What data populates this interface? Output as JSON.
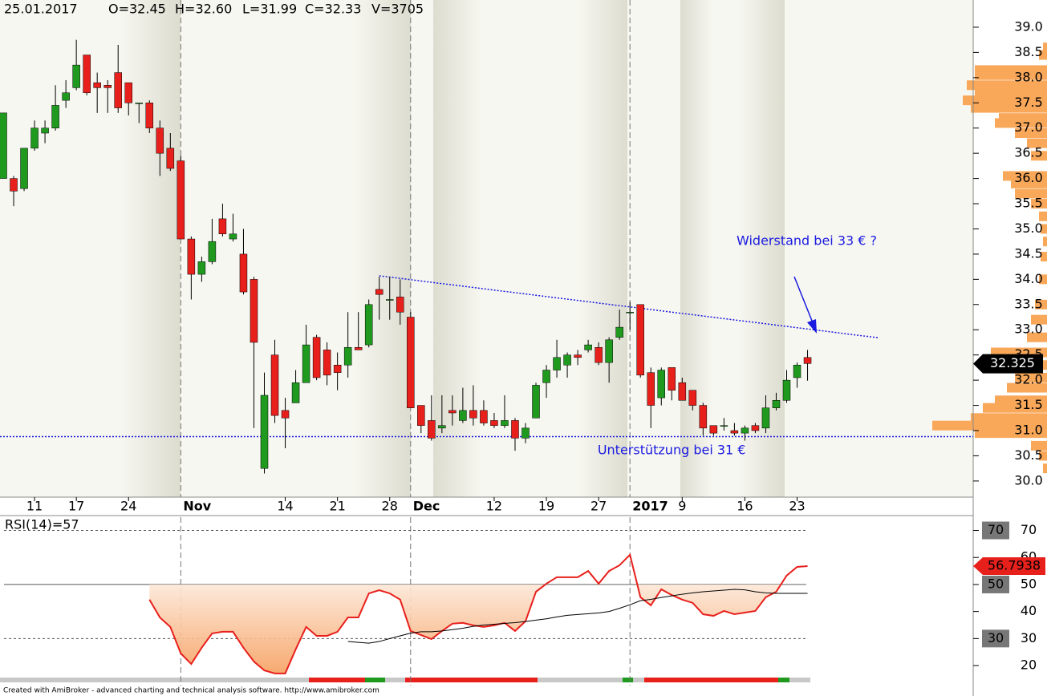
{
  "chart_data": [
    {
      "type": "candlestick",
      "header": [
        "25.01.2017",
        "O=32.45",
        "H=32.60",
        "L=31.99",
        "C=32.33",
        "V=3705"
      ],
      "ylim": [
        29.68,
        39.54
      ],
      "yticks": [
        {
          "value": 30,
          "label": "30.0"
        },
        {
          "value": 30.5,
          "label": "30.5"
        },
        {
          "value": 31,
          "label": "31.0"
        },
        {
          "value": 31.5,
          "label": "31.5"
        },
        {
          "value": 32,
          "label": "32.0"
        },
        {
          "value": 32.5,
          "label": "32.5"
        },
        {
          "value": 33,
          "label": "33.0"
        },
        {
          "value": 33.5,
          "label": "33.5"
        },
        {
          "value": 34,
          "label": "34.0"
        },
        {
          "value": 34.5,
          "label": "34.5"
        },
        {
          "value": 35,
          "label": "35.0"
        },
        {
          "value": 35.5,
          "label": "35.5"
        },
        {
          "value": 36,
          "label": "36.0"
        },
        {
          "value": 36.5,
          "label": "36.5"
        },
        {
          "value": 37,
          "label": "37.0"
        },
        {
          "value": 37.5,
          "label": "37.5"
        },
        {
          "value": 38,
          "label": "38.0"
        },
        {
          "value": 38.5,
          "label": "38.5"
        },
        {
          "value": 39,
          "label": "39.0"
        }
      ],
      "xticks": [
        {
          "value": 3,
          "label": "11"
        },
        {
          "value": 7,
          "label": "17"
        },
        {
          "value": 12,
          "label": "24"
        },
        {
          "value": 27,
          "label": "14"
        },
        {
          "value": 32,
          "label": "21"
        },
        {
          "value": 37,
          "label": "28"
        },
        {
          "value": 47,
          "label": "12"
        },
        {
          "value": 52,
          "label": "19"
        },
        {
          "value": 57,
          "label": "27"
        },
        {
          "value": 65,
          "label": "9"
        },
        {
          "value": 71,
          "label": "16"
        },
        {
          "value": 76,
          "label": "23"
        }
      ],
      "major_xticks": [
        {
          "value": 17,
          "label": "Nov"
        },
        {
          "value": 39,
          "label": "Dec"
        },
        {
          "value": 60,
          "label": "2017"
        }
      ],
      "up_color": "#1f9a1f",
      "down_color": "#e8201c",
      "open": [
        36.0,
        36.0,
        35.8,
        36.6,
        36.9,
        37.0,
        37.55,
        37.8,
        38.45,
        37.9,
        37.85,
        38.1,
        37.9,
        37.5,
        37.5,
        37.0,
        36.6,
        36.35,
        34.8,
        34.1,
        34.35,
        35.2,
        34.8,
        34.5,
        34.0,
        30.25,
        32.5,
        31.4,
        31.55,
        31.95,
        32.85,
        32.6,
        32.3,
        32.3,
        32.65,
        32.7,
        33.8,
        33.6,
        33.65,
        33.25,
        31.5,
        31.2,
        31.05,
        31.4,
        31.2,
        31.4,
        31.4,
        31.2,
        31.1,
        31.2,
        30.85,
        31.25,
        31.95,
        32.2,
        32.3,
        32.5,
        32.6,
        32.65,
        32.35,
        32.85,
        33.35,
        33.5,
        32.15,
        31.65,
        32.25,
        31.95,
        31.8,
        31.5,
        31.1,
        31.1,
        31.0,
        30.95,
        31.1,
        31.05,
        31.45,
        31.6,
        32.05,
        32.45
      ],
      "high": [
        37.3,
        36.05,
        36.6,
        37.15,
        37.15,
        37.85,
        37.95,
        38.75,
        38.45,
        38.1,
        37.95,
        38.65,
        37.9,
        37.5,
        37.55,
        37.15,
        36.9,
        36.45,
        34.85,
        34.45,
        35.2,
        35.5,
        35.3,
        35.0,
        34.05,
        32.15,
        32.8,
        31.65,
        32.2,
        33.1,
        32.9,
        32.75,
        32.55,
        33.35,
        33.35,
        33.6,
        34.05,
        34.05,
        34.0,
        33.35,
        31.5,
        31.7,
        31.7,
        31.7,
        31.85,
        31.9,
        31.6,
        31.35,
        31.7,
        31.25,
        31.15,
        31.95,
        32.3,
        32.8,
        32.55,
        32.6,
        32.8,
        32.75,
        32.85,
        33.4,
        33.55,
        33.5,
        32.25,
        32.25,
        32.25,
        32.05,
        31.8,
        31.55,
        31.1,
        31.25,
        31.15,
        31.1,
        31.15,
        31.7,
        31.75,
        32.2,
        32.35,
        32.6
      ],
      "low": [
        36.0,
        35.45,
        35.75,
        36.55,
        36.7,
        36.95,
        37.4,
        37.75,
        37.65,
        37.3,
        37.3,
        37.3,
        37.25,
        37.1,
        36.9,
        36.05,
        36.15,
        34.8,
        33.6,
        33.95,
        34.3,
        34.85,
        34.75,
        33.7,
        31.05,
        30.15,
        31.15,
        30.65,
        31.55,
        31.95,
        32.0,
        31.9,
        31.8,
        32.05,
        32.6,
        32.65,
        33.2,
        33.2,
        33.1,
        31.45,
        30.95,
        30.8,
        30.95,
        31.1,
        31.15,
        31.1,
        31.1,
        31.05,
        31.05,
        30.6,
        30.75,
        31.25,
        31.65,
        32.05,
        32.05,
        32.3,
        32.55,
        32.3,
        31.95,
        32.8,
        33.0,
        32.05,
        31.05,
        31.5,
        31.6,
        31.6,
        31.4,
        30.9,
        30.9,
        31.0,
        30.9,
        30.8,
        30.95,
        30.95,
        31.4,
        31.55,
        31.85,
        31.99
      ],
      "close": [
        37.3,
        35.75,
        36.6,
        37.0,
        37.0,
        37.45,
        37.7,
        38.25,
        37.7,
        37.8,
        37.8,
        37.4,
        37.5,
        37.5,
        37.0,
        36.5,
        36.2,
        34.8,
        34.1,
        34.35,
        34.75,
        34.9,
        34.9,
        33.75,
        32.75,
        31.7,
        31.3,
        31.25,
        31.95,
        32.7,
        32.05,
        32.1,
        32.15,
        32.65,
        32.6,
        33.5,
        33.7,
        33.6,
        33.35,
        31.45,
        31.1,
        30.85,
        31.1,
        31.35,
        31.4,
        31.25,
        31.15,
        31.1,
        31.2,
        30.85,
        31.05,
        31.9,
        32.2,
        32.45,
        32.5,
        32.45,
        32.7,
        32.35,
        32.8,
        33.05,
        33.35,
        32.1,
        31.5,
        32.2,
        31.8,
        31.6,
        31.5,
        31.05,
        30.95,
        31.1,
        30.95,
        31.05,
        31.0,
        31.45,
        31.6,
        32.0,
        32.3,
        32.33
      ],
      "last_value": 32.325,
      "volume_profile": {
        "color": "#f9a85a",
        "prices": [
          38.6,
          38.45,
          38.15,
          38.05,
          37.85,
          37.7,
          37.55,
          37.4,
          37.2,
          37.1,
          36.9,
          36.7,
          36.45,
          36.05,
          35.9,
          35.7,
          35.5,
          35.25,
          35.0,
          34.75,
          34.45,
          34.0,
          33.5,
          33.2,
          32.85,
          32.55,
          32.3,
          32.05,
          31.85,
          31.6,
          31.45,
          31.25,
          31.1,
          30.95,
          30.7,
          30.5,
          30.25
        ],
        "values": [
          5,
          10,
          90,
          90,
          100,
          90,
          105,
          95,
          60,
          65,
          40,
          25,
          20,
          55,
          45,
          40,
          20,
          10,
          8,
          5,
          8,
          10,
          15,
          20,
          25,
          70,
          45,
          40,
          50,
          65,
          80,
          95,
          143,
          90,
          20,
          10,
          5
        ]
      },
      "annotations": [
        {
          "text": "Widerstand bei 33 € ?",
          "x": 70.2,
          "y": 34.75
        },
        {
          "text": "Unterstützung bei 31 €",
          "x": 56.9,
          "y": 30.6
        }
      ],
      "resistance_line": {
        "x": [
          36,
          83.8
        ],
        "y": [
          34.07,
          32.84
        ],
        "color": "#1a1ae0"
      },
      "support_line": {
        "y": 30.88,
        "color": "#1a1ae0"
      }
    },
    {
      "type": "line",
      "title": "RSI(14)=57",
      "ylim": [
        12.6,
        74.9
      ],
      "yticks": [
        20,
        30,
        40,
        50,
        60,
        70
      ],
      "levels": [
        30,
        50,
        70
      ],
      "last_value": 56.7938,
      "series": [
        {
          "color": "#e8201c",
          "values": [
            null,
            null,
            null,
            null,
            null,
            null,
            null,
            null,
            null,
            null,
            null,
            null,
            null,
            null,
            44.4,
            37.8,
            34.3,
            24.5,
            20.6,
            26.6,
            31.9,
            32.5,
            32.5,
            26.6,
            21.5,
            18.2,
            17.1,
            17.1,
            26.0,
            34.3,
            31.0,
            31.0,
            32.5,
            37.8,
            37.8,
            46.7,
            47.9,
            46.7,
            44.4,
            32.8,
            31.3,
            29.8,
            32.8,
            35.5,
            35.8,
            34.9,
            34.3,
            34.9,
            35.8,
            32.8,
            36.4,
            47.3,
            50.3,
            52.7,
            52.7,
            52.7,
            55.0,
            50.3,
            55.0,
            57.1,
            61.0,
            45.3,
            42.3,
            48.2,
            46.1,
            44.4,
            43.2,
            39.0,
            38.4,
            40.2,
            39.0,
            39.6,
            40.2,
            45.3,
            47.3,
            53.3,
            56.5,
            56.79
          ]
        },
        {
          "color": "#000000",
          "values": [
            null,
            null,
            null,
            null,
            null,
            null,
            null,
            null,
            null,
            null,
            null,
            null,
            null,
            null,
            null,
            null,
            null,
            null,
            null,
            null,
            null,
            null,
            null,
            null,
            null,
            null,
            null,
            null,
            null,
            null,
            null,
            null,
            null,
            28.9,
            28.6,
            28.3,
            28.9,
            30.0,
            31.0,
            32.0,
            32.5,
            32.5,
            32.8,
            33.3,
            33.8,
            34.5,
            35.0,
            35.3,
            35.6,
            35.9,
            36.3,
            36.8,
            37.3,
            38.0,
            38.6,
            38.9,
            39.2,
            39.5,
            40.0,
            41.2,
            42.5,
            44.0,
            44.5,
            45.2,
            45.8,
            46.4,
            46.9,
            47.3,
            47.6,
            47.9,
            48.2,
            48.0,
            47.3,
            46.9,
            46.7,
            46.7,
            46.7,
            46.7
          ]
        }
      ]
    }
  ],
  "footer": "Created with AmiBroker - advanced charting and technical analysis software. http://www.amibroker.com"
}
